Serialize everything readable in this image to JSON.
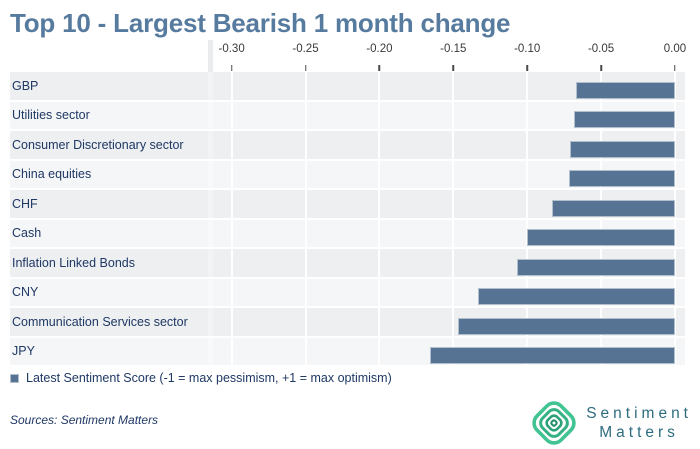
{
  "title": "Top 10 - Largest Bearish 1 month change",
  "legend": {
    "label": "Latest Sentiment Score (-1 = max pessimism, +1 = max optimism)"
  },
  "footer": {
    "sources": "Sources: Sentiment Matters"
  },
  "logo": {
    "icon": "concentric-diamond-icon",
    "line1": "Sentiment",
    "line2": "Matters"
  },
  "colors": {
    "bar": "#577394",
    "bar_border": "#b2c0cd",
    "title": "#577b9f",
    "text_navy": "#1f3864",
    "logo_green_outer": "#41c392",
    "logo_green_2": "#35b285",
    "logo_green_3": "#2ba178",
    "logo_green_inner": "#23906a",
    "logo_teal_text": "#2d6b7f"
  },
  "chart_data": {
    "type": "bar",
    "orientation": "horizontal",
    "title": "Top 10 - Largest Bearish 1 month change",
    "series_name": "Latest Sentiment Score",
    "categories": [
      "GBP",
      "Utilities sector",
      "Consumer Discretionary sector",
      "China equities",
      "CHF",
      "Cash",
      "Inflation Linked Bonds",
      "CNY",
      "Communication Services sector",
      "JPY"
    ],
    "values": [
      -0.067,
      -0.068,
      -0.071,
      -0.072,
      -0.083,
      -0.1,
      -0.107,
      -0.133,
      -0.147,
      -0.166
    ],
    "x_ticks": [
      -0.3,
      -0.25,
      -0.2,
      -0.15,
      -0.1,
      -0.05,
      0.0
    ],
    "x_tick_labels": [
      "-0.30",
      "-0.25",
      "-0.20",
      "-0.15",
      "-0.10",
      "-0.05",
      "0.00"
    ],
    "xlim": [
      -0.3126,
      0.0068
    ],
    "xlabel": "",
    "ylabel": "",
    "grid": true,
    "gridline_color": "#ffffff",
    "row_band_colors": [
      "#edeff1",
      "#f5f6f7"
    ],
    "legend_position": "bottom",
    "bar_color": "#577394"
  }
}
